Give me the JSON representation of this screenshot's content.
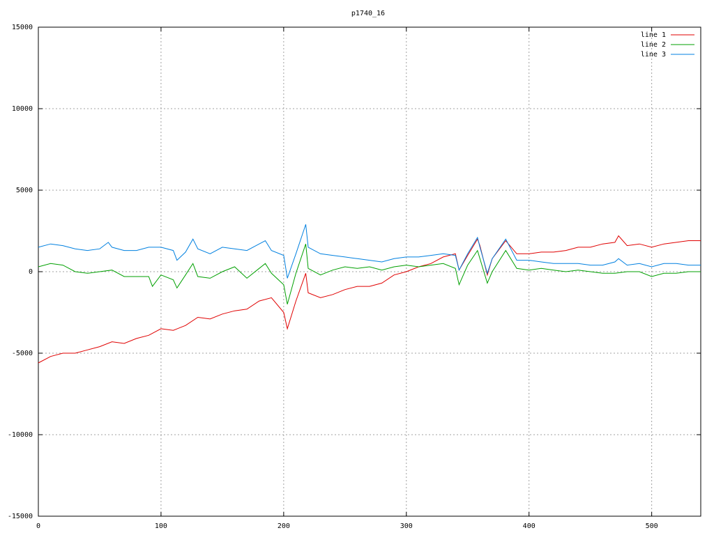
{
  "chart_data": {
    "type": "line",
    "title": "p1740_16",
    "xlim": [
      0,
      540
    ],
    "xticks": [
      0,
      100,
      200,
      300,
      400,
      500
    ],
    "ylim": [
      -15000,
      15000
    ],
    "yticks": [
      -15000,
      -10000,
      -5000,
      0,
      5000,
      10000,
      15000
    ],
    "grid": true,
    "legend": "top-right",
    "series": [
      {
        "name": "line 1",
        "color": "#e00000",
        "x": [
          0,
          10,
          20,
          30,
          40,
          50,
          60,
          70,
          80,
          90,
          100,
          110,
          120,
          130,
          140,
          150,
          160,
          170,
          180,
          190,
          200,
          203,
          210,
          218,
          220,
          230,
          240,
          250,
          260,
          270,
          280,
          290,
          300,
          310,
          320,
          330,
          340,
          343,
          350,
          358,
          360,
          366,
          370,
          381,
          390,
          400,
          410,
          420,
          430,
          440,
          450,
          460,
          470,
          473,
          480,
          490,
          500,
          510,
          520,
          530,
          540
        ],
        "values": [
          -5600,
          -5200,
          -5000,
          -5000,
          -4800,
          -4600,
          -4300,
          -4400,
          -4100,
          -3900,
          -3500,
          -3600,
          -3300,
          -2800,
          -2900,
          -2600,
          -2400,
          -2300,
          -1800,
          -1600,
          -2500,
          -3500,
          -1800,
          -100,
          -1300,
          -1600,
          -1400,
          -1100,
          -900,
          -900,
          -700,
          -200,
          0,
          300,
          500,
          900,
          1100,
          100,
          1000,
          2000,
          1600,
          -200,
          800,
          1900,
          1100,
          1100,
          1200,
          1200,
          1300,
          1500,
          1500,
          1700,
          1800,
          2200,
          1600,
          1700,
          1500,
          1700,
          1800,
          1900,
          1900
        ]
      },
      {
        "name": "line 2",
        "color": "#00a000",
        "x": [
          0,
          10,
          20,
          30,
          40,
          50,
          60,
          70,
          80,
          90,
          93,
          100,
          110,
          113,
          120,
          126,
          130,
          140,
          150,
          160,
          170,
          180,
          185,
          190,
          200,
          203,
          210,
          218,
          220,
          230,
          240,
          250,
          260,
          270,
          280,
          290,
          300,
          310,
          320,
          330,
          340,
          343,
          350,
          358,
          360,
          366,
          370,
          381,
          390,
          400,
          410,
          420,
          430,
          440,
          450,
          460,
          470,
          480,
          490,
          500,
          510,
          520,
          530,
          540
        ],
        "values": [
          300,
          500,
          400,
          0,
          -100,
          0,
          100,
          -300,
          -300,
          -300,
          -900,
          -200,
          -500,
          -1000,
          -200,
          500,
          -300,
          -400,
          0,
          300,
          -400,
          200,
          500,
          -100,
          -800,
          -2000,
          -100,
          1700,
          200,
          -200,
          100,
          300,
          200,
          300,
          100,
          300,
          400,
          300,
          400,
          500,
          200,
          -800,
          400,
          1300,
          800,
          -700,
          0,
          1300,
          200,
          100,
          200,
          100,
          0,
          100,
          0,
          -100,
          -100,
          0,
          0,
          -300,
          -100,
          -100,
          0,
          0
        ]
      },
      {
        "name": "line 3",
        "color": "#0080e0",
        "x": [
          0,
          10,
          20,
          30,
          40,
          50,
          57,
          60,
          70,
          80,
          90,
          100,
          110,
          113,
          120,
          126,
          130,
          140,
          150,
          160,
          170,
          180,
          185,
          190,
          200,
          203,
          210,
          218,
          220,
          230,
          240,
          250,
          260,
          270,
          280,
          290,
          300,
          310,
          320,
          330,
          340,
          343,
          350,
          358,
          360,
          366,
          370,
          381,
          390,
          400,
          410,
          420,
          430,
          440,
          450,
          460,
          470,
          473,
          480,
          490,
          500,
          510,
          520,
          530,
          540
        ],
        "values": [
          1500,
          1700,
          1600,
          1400,
          1300,
          1400,
          1800,
          1500,
          1300,
          1300,
          1500,
          1500,
          1300,
          700,
          1200,
          2000,
          1400,
          1100,
          1500,
          1400,
          1300,
          1700,
          1900,
          1300,
          1000,
          -400,
          1100,
          2900,
          1500,
          1100,
          1000,
          900,
          800,
          700,
          600,
          800,
          900,
          900,
          1000,
          1100,
          1000,
          100,
          1100,
          2100,
          1500,
          -100,
          800,
          2000,
          700,
          700,
          600,
          500,
          500,
          500,
          400,
          400,
          600,
          800,
          400,
          500,
          300,
          500,
          500,
          400,
          400
        ]
      }
    ]
  }
}
